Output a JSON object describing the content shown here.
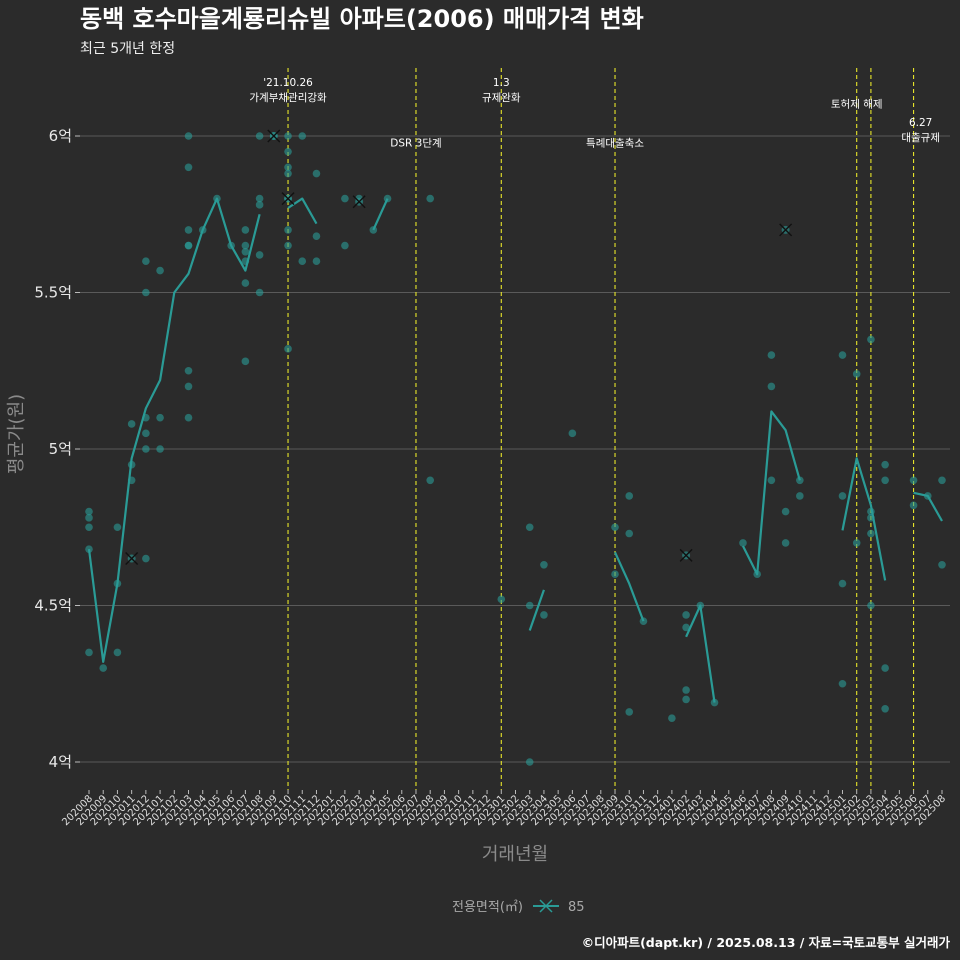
{
  "chart_data": {
    "type": "line",
    "title": "동백 호수마을계룡리슈빌 아파트(2006) 매매가격 변화",
    "subtitle": "최근 5개년 한정",
    "xlabel": "거래년월",
    "ylabel": "평균가(원)",
    "y_ticks": [
      {
        "value": 4.0,
        "label": "4억"
      },
      {
        "value": 4.5,
        "label": "4.5억"
      },
      {
        "value": 5.0,
        "label": "5억"
      },
      {
        "value": 5.5,
        "label": "5.5억"
      },
      {
        "value": 6.0,
        "label": "6억"
      }
    ],
    "ylim": [
      3.88,
      6.2
    ],
    "y_unit": "억",
    "grid": true,
    "months": [
      "202008",
      "202009",
      "202010",
      "202011",
      "202012",
      "202101",
      "202102",
      "202103",
      "202104",
      "202105",
      "202106",
      "202107",
      "202108",
      "202109",
      "202110",
      "202111",
      "202112",
      "202201",
      "202202",
      "202203",
      "202204",
      "202205",
      "202206",
      "202207",
      "202208",
      "202209",
      "202210",
      "202211",
      "202212",
      "202301",
      "202302",
      "202303",
      "202304",
      "202305",
      "202306",
      "202307",
      "202308",
      "202309",
      "202310",
      "202311",
      "202312",
      "202401",
      "202402",
      "202403",
      "202404",
      "202405",
      "202406",
      "202407",
      "202408",
      "202409",
      "202410",
      "202411",
      "202412",
      "202501",
      "202502",
      "202503",
      "202504",
      "202505",
      "202506",
      "202507",
      "202508"
    ],
    "legend": {
      "title": "전용면적(㎡)",
      "entries": [
        "85"
      ],
      "placement": "bottom",
      "color": "#2a9b96"
    },
    "series": [
      {
        "name": "85",
        "color": "#2a9b96",
        "line_segments": [
          [
            [
              "202008",
              4.68
            ],
            [
              "202009",
              4.32
            ],
            [
              "202010",
              4.57
            ],
            [
              "202011",
              4.97
            ],
            [
              "202012",
              5.13
            ],
            [
              "202101",
              5.22
            ],
            [
              "202102",
              5.5
            ],
            [
              "202103",
              5.56
            ],
            [
              "202104",
              5.7
            ],
            [
              "202105",
              5.8
            ],
            [
              "202106",
              5.65
            ],
            [
              "202107",
              5.57
            ],
            [
              "202108",
              5.75
            ]
          ],
          [
            [
              "202110",
              5.77
            ],
            [
              "202111",
              5.8
            ],
            [
              "202112",
              5.72
            ]
          ],
          [
            [
              "202204",
              5.7
            ],
            [
              "202205",
              5.8
            ]
          ],
          [
            [
              "202303",
              4.42
            ],
            [
              "202304",
              4.55
            ]
          ],
          [
            [
              "202309",
              4.67
            ],
            [
              "202310",
              4.57
            ],
            [
              "202311",
              4.45
            ]
          ],
          [
            [
              "202402",
              4.4
            ],
            [
              "202403",
              4.5
            ],
            [
              "202404",
              4.19
            ]
          ],
          [
            [
              "202406",
              4.69
            ],
            [
              "202407",
              4.6
            ],
            [
              "202408",
              5.12
            ],
            [
              "202409",
              5.06
            ],
            [
              "202410",
              4.9
            ]
          ],
          [
            [
              "202501",
              4.74
            ],
            [
              "202502",
              4.97
            ],
            [
              "202503",
              4.82
            ],
            [
              "202504",
              4.58
            ]
          ],
          [
            [
              "202506",
              4.86
            ],
            [
              "202507",
              4.85
            ],
            [
              "202508",
              4.77
            ]
          ]
        ],
        "points": [
          [
            "202008",
            4.8
          ],
          [
            "202008",
            4.78
          ],
          [
            "202008",
            4.75
          ],
          [
            "202008",
            4.68
          ],
          [
            "202008",
            4.35
          ],
          [
            "202009",
            4.3
          ],
          [
            "202010",
            4.75
          ],
          [
            "202010",
            4.57
          ],
          [
            "202010",
            4.35
          ],
          [
            "202011",
            5.08
          ],
          [
            "202011",
            4.95
          ],
          [
            "202011",
            4.9
          ],
          [
            "202012",
            5.6
          ],
          [
            "202012",
            5.5
          ],
          [
            "202012",
            5.1
          ],
          [
            "202012",
            5.05
          ],
          [
            "202012",
            5.0
          ],
          [
            "202012",
            4.65
          ],
          [
            "202101",
            5.57
          ],
          [
            "202101",
            5.1
          ],
          [
            "202101",
            5.0
          ],
          [
            "202103",
            6.0
          ],
          [
            "202103",
            5.9
          ],
          [
            "202103",
            5.7
          ],
          [
            "202103",
            5.65
          ],
          [
            "202103",
            5.65
          ],
          [
            "202103",
            5.25
          ],
          [
            "202103",
            5.2
          ],
          [
            "202103",
            5.1
          ],
          [
            "202104",
            5.7
          ],
          [
            "202105",
            5.8
          ],
          [
            "202106",
            5.65
          ],
          [
            "202107",
            5.7
          ],
          [
            "202107",
            5.65
          ],
          [
            "202107",
            5.63
          ],
          [
            "202107",
            5.6
          ],
          [
            "202107",
            5.53
          ],
          [
            "202107",
            5.28
          ],
          [
            "202108",
            6.0
          ],
          [
            "202108",
            5.8
          ],
          [
            "202108",
            5.78
          ],
          [
            "202108",
            5.62
          ],
          [
            "202108",
            5.5
          ],
          [
            "202109",
            6.0
          ],
          [
            "202110",
            6.0
          ],
          [
            "202110",
            5.95
          ],
          [
            "202110",
            5.9
          ],
          [
            "202110",
            5.88
          ],
          [
            "202110",
            5.8
          ],
          [
            "202110",
            5.7
          ],
          [
            "202110",
            5.65
          ],
          [
            "202110",
            5.32
          ],
          [
            "202111",
            6.0
          ],
          [
            "202111",
            5.6
          ],
          [
            "202112",
            5.88
          ],
          [
            "202112",
            5.68
          ],
          [
            "202112",
            5.6
          ],
          [
            "202202",
            5.65
          ],
          [
            "202202",
            5.8
          ],
          [
            "202203",
            5.8
          ],
          [
            "202204",
            5.7
          ],
          [
            "202205",
            5.8
          ],
          [
            "202208",
            5.8
          ],
          [
            "202208",
            4.9
          ],
          [
            "202301",
            4.52
          ],
          [
            "202303",
            4.75
          ],
          [
            "202303",
            4.5
          ],
          [
            "202303",
            4.0
          ],
          [
            "202304",
            4.63
          ],
          [
            "202304",
            4.47
          ],
          [
            "202306",
            5.05
          ],
          [
            "202309",
            4.75
          ],
          [
            "202309",
            4.6
          ],
          [
            "202310",
            4.85
          ],
          [
            "202310",
            4.73
          ],
          [
            "202310",
            4.16
          ],
          [
            "202311",
            4.45
          ],
          [
            "202401",
            4.14
          ],
          [
            "202402",
            4.47
          ],
          [
            "202402",
            4.43
          ],
          [
            "202402",
            4.23
          ],
          [
            "202402",
            4.2
          ],
          [
            "202403",
            4.5
          ],
          [
            "202404",
            4.19
          ],
          [
            "202406",
            4.7
          ],
          [
            "202407",
            4.6
          ],
          [
            "202408",
            5.3
          ],
          [
            "202408",
            5.2
          ],
          [
            "202408",
            4.9
          ],
          [
            "202409",
            4.8
          ],
          [
            "202409",
            4.7
          ],
          [
            "202410",
            4.9
          ],
          [
            "202410",
            4.85
          ],
          [
            "202501",
            5.3
          ],
          [
            "202501",
            4.85
          ],
          [
            "202501",
            4.57
          ],
          [
            "202501",
            4.25
          ],
          [
            "202502",
            5.24
          ],
          [
            "202502",
            4.7
          ],
          [
            "202503",
            5.35
          ],
          [
            "202503",
            4.8
          ],
          [
            "202503",
            4.78
          ],
          [
            "202503",
            4.73
          ],
          [
            "202503",
            4.5
          ],
          [
            "202504",
            4.95
          ],
          [
            "202504",
            4.9
          ],
          [
            "202504",
            4.3
          ],
          [
            "202504",
            4.17
          ],
          [
            "202506",
            4.9
          ],
          [
            "202506",
            4.82
          ],
          [
            "202507",
            4.85
          ],
          [
            "202508",
            4.9
          ],
          [
            "202508",
            4.63
          ]
        ],
        "cross_markers": [
          [
            "202011",
            4.65
          ],
          [
            "202109",
            6.0
          ],
          [
            "202110",
            5.8
          ],
          [
            "202203",
            5.79
          ],
          [
            "202402",
            4.66
          ],
          [
            "202409",
            5.7
          ]
        ]
      }
    ],
    "annotations": [
      {
        "x": 14.0,
        "y": 6.149,
        "lines": [
          "'21.10.26",
          "가계부채관리강화"
        ]
      },
      {
        "x": 23.0,
        "y": 5.98,
        "lines": [
          "DSR 3단계"
        ]
      },
      {
        "x": 29.0,
        "y": 6.149,
        "lines": [
          "1.3",
          "규제완화"
        ]
      },
      {
        "x": 37.0,
        "y": 5.98,
        "lines": [
          "특례대출축소"
        ]
      },
      {
        "x": 54.0,
        "y": 6.104,
        "lines": [
          "토허제 해제"
        ]
      },
      {
        "x": 58.5,
        "y": 6.02,
        "lines": [
          "6.27",
          "대출규제"
        ]
      }
    ],
    "vlines": [
      14.0,
      23.0,
      29.0,
      37.0,
      54.0,
      55.0,
      58.0
    ],
    "vline_color": "#e8e62a"
  },
  "caption": "©디아파트(dapt.kr) / 2025.08.13 / 자료=국토교통부 실거래가"
}
